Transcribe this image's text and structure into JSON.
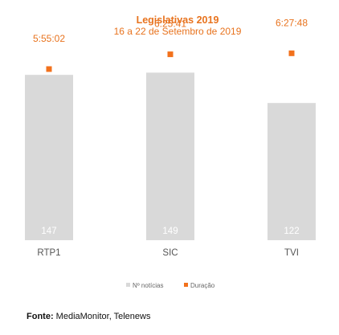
{
  "chart_data": {
    "type": "bar",
    "title": "Legislativas 2019",
    "subtitle": "16 a 22 de Setembro de 2019",
    "categories": [
      "RTP1",
      "SIC",
      "TVI"
    ],
    "series": [
      {
        "name": "Nº notícias",
        "kind": "bar",
        "color": "#D9D9D9",
        "values": [
          147,
          149,
          122
        ]
      },
      {
        "name": "Duração",
        "kind": "marker",
        "color": "#F2711C",
        "values": [
          "5:55:02",
          "6:25:41",
          "6:27:48"
        ],
        "seconds": [
          21302,
          23141,
          23268
        ]
      }
    ],
    "ylim_bars": [
      0,
      200
    ],
    "ylim_duration_seconds": [
      0,
      28000
    ],
    "legend_position": "bottom",
    "grid": false
  },
  "source": {
    "label": "Fonte:",
    "text": "MediaMonitor, Telenews"
  }
}
